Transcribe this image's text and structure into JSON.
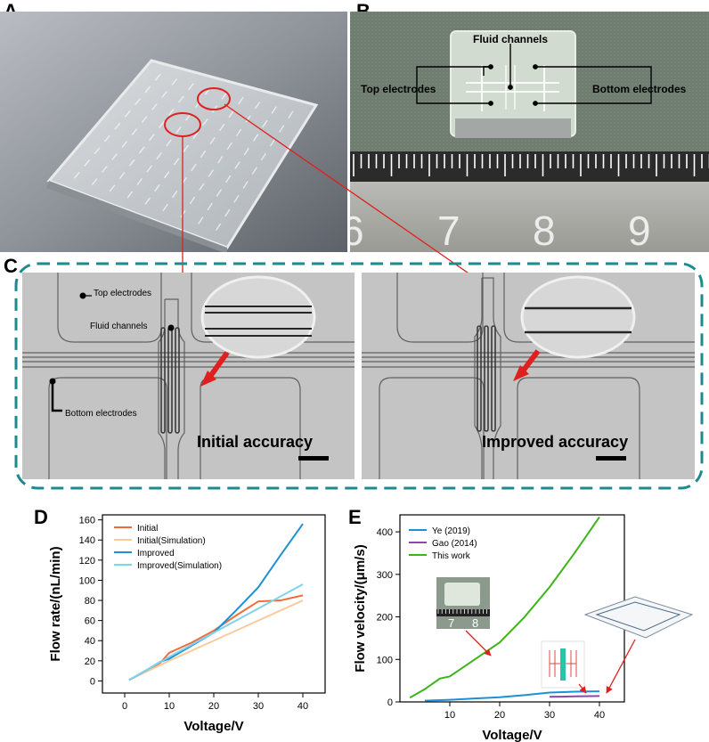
{
  "panels": {
    "A": {
      "letter": "A"
    },
    "B": {
      "letter": "B",
      "labels": {
        "fluid_channels": "Fluid channels",
        "top_electrodes": "Top electrodes",
        "bottom_electrodes": "Bottom electrodes"
      },
      "ruler_numbers": [
        "6",
        "7",
        "8",
        "9"
      ]
    },
    "C": {
      "letter": "C",
      "labels": {
        "top_electrodes": "Top electrodes",
        "fluid_channels": "Fluid channels",
        "bottom_electrodes": "Bottom electrodes",
        "initial": "Initial accuracy",
        "improved": "Improved accuracy"
      }
    },
    "D": {
      "letter": "D"
    },
    "E": {
      "letter": "E",
      "inset_ruler_numbers": [
        "7",
        "8"
      ]
    }
  },
  "chart_data": [
    {
      "type": "line",
      "title": "",
      "xlabel": "Voltage/V",
      "ylabel": "Flow rate/(nL/min)",
      "xlim": [
        -5,
        45
      ],
      "ylim": [
        -12,
        165
      ],
      "xticks": [
        0,
        10,
        20,
        30,
        40
      ],
      "yticks": [
        0,
        20,
        40,
        60,
        80,
        100,
        120,
        140,
        160
      ],
      "legend_position": "top-left",
      "series": [
        {
          "name": "Initial",
          "color": "#f26b3a",
          "x": [
            1,
            5,
            8,
            10,
            15,
            20,
            25,
            30,
            35,
            40
          ],
          "values": [
            1,
            10,
            18,
            28,
            38,
            50,
            65,
            79,
            80,
            85
          ]
        },
        {
          "name": "Initial(Simulation)",
          "color": "#f9cb9c",
          "x": [
            1,
            10,
            20,
            30,
            40
          ],
          "values": [
            1,
            20,
            40,
            60,
            80
          ]
        },
        {
          "name": "Improved",
          "color": "#1f8fd6",
          "x": [
            1,
            5,
            8,
            10,
            15,
            20,
            25,
            30,
            35,
            40
          ],
          "values": [
            1,
            11,
            19,
            22,
            35,
            48,
            70,
            93,
            125,
            156
          ]
        },
        {
          "name": "Improved(Simulation)",
          "color": "#7fd3ea",
          "x": [
            1,
            10,
            20,
            30,
            40
          ],
          "values": [
            1,
            24,
            48,
            72,
            96
          ]
        }
      ]
    },
    {
      "type": "line",
      "title": "",
      "xlabel": "Voltage/V",
      "ylabel": "Flow velocity/(μm/s)",
      "xlim": [
        0,
        45
      ],
      "ylim": [
        0,
        440
      ],
      "xticks": [
        10,
        20,
        30,
        40
      ],
      "yticks": [
        0,
        100,
        200,
        300,
        400
      ],
      "legend_position": "top-left",
      "series": [
        {
          "name": "Ye (2019)",
          "color": "#1f8fd6",
          "x": [
            5,
            10,
            15,
            20,
            25,
            30,
            35,
            40
          ],
          "values": [
            3,
            5,
            8,
            11,
            16,
            22,
            24,
            25
          ]
        },
        {
          "name": "Gao (2014)",
          "color": "#8e44ad",
          "x": [
            30,
            35,
            40
          ],
          "values": [
            12,
            13,
            14
          ]
        },
        {
          "name": "This work",
          "color": "#3cb517",
          "x": [
            2,
            5,
            8,
            10,
            15,
            20,
            25,
            30,
            35,
            40
          ],
          "values": [
            10,
            30,
            55,
            60,
            100,
            140,
            200,
            270,
            350,
            435
          ]
        }
      ]
    }
  ]
}
